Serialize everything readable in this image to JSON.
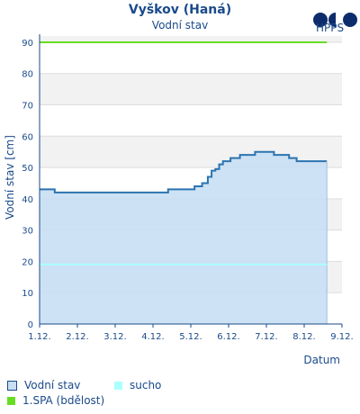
{
  "header": {
    "title": "Vyškov (Haná)",
    "subtitle": "Vodní stav",
    "logo_text": "HPPS"
  },
  "legend": [
    {
      "label": "Vodní stav",
      "color": "#c8dff3",
      "border": "#1a4a8a"
    },
    {
      "label": "sucho",
      "color": "#aaffff",
      "border": "#aaffff"
    },
    {
      "label": "1.SPA (bdělost)",
      "color": "#66dd22",
      "border": "#66dd22"
    }
  ],
  "chart_data": {
    "type": "area",
    "title": "Vyškov (Haná)",
    "subtitle": "Vodní stav",
    "ylabel": "Vodní stav [cm]",
    "xlabel": "Datum",
    "ylim": [
      0,
      92
    ],
    "yticks": [
      0,
      10,
      20,
      30,
      40,
      50,
      60,
      70,
      80,
      90
    ],
    "xlim": [
      1.0,
      9.0
    ],
    "xticks": [
      {
        "x": 1,
        "label": "1.12."
      },
      {
        "x": 2,
        "label": "2.12."
      },
      {
        "x": 3,
        "label": "3.12."
      },
      {
        "x": 4,
        "label": "4.12."
      },
      {
        "x": 5,
        "label": "5.12."
      },
      {
        "x": 6,
        "label": "6.12."
      },
      {
        "x": 7,
        "label": "7.12."
      },
      {
        "x": 8,
        "label": "8.12."
      },
      {
        "x": 9,
        "label": "9.12."
      }
    ],
    "grid": "alternating horizontal bands",
    "series": [
      {
        "name": "Vodní stav",
        "color": "#2b74b0",
        "fill": "#c8dff3",
        "points": [
          [
            1.0,
            43
          ],
          [
            1.4,
            43
          ],
          [
            1.4,
            42
          ],
          [
            2.5,
            42
          ],
          [
            4.0,
            42
          ],
          [
            4.4,
            42
          ],
          [
            4.4,
            43
          ],
          [
            5.0,
            43
          ],
          [
            5.1,
            43
          ],
          [
            5.1,
            44
          ],
          [
            5.3,
            44
          ],
          [
            5.3,
            45
          ],
          [
            5.45,
            45
          ],
          [
            5.45,
            47
          ],
          [
            5.55,
            47
          ],
          [
            5.55,
            49
          ],
          [
            5.65,
            49
          ],
          [
            5.65,
            49.5
          ],
          [
            5.75,
            49.5
          ],
          [
            5.75,
            51
          ],
          [
            5.85,
            51
          ],
          [
            5.85,
            52
          ],
          [
            6.05,
            52
          ],
          [
            6.05,
            53
          ],
          [
            6.3,
            53
          ],
          [
            6.3,
            54
          ],
          [
            6.7,
            54
          ],
          [
            6.7,
            55
          ],
          [
            7.1,
            55
          ],
          [
            7.2,
            55
          ],
          [
            7.2,
            54
          ],
          [
            7.6,
            54
          ],
          [
            7.6,
            53
          ],
          [
            7.8,
            53
          ],
          [
            7.8,
            52
          ],
          [
            8.6,
            52
          ]
        ]
      }
    ],
    "thresholds": [
      {
        "name": "sucho",
        "value": 19,
        "color": "#aaffff"
      },
      {
        "name": "1.SPA (bdělost)",
        "value": 90,
        "color": "#66dd22"
      }
    ]
  }
}
